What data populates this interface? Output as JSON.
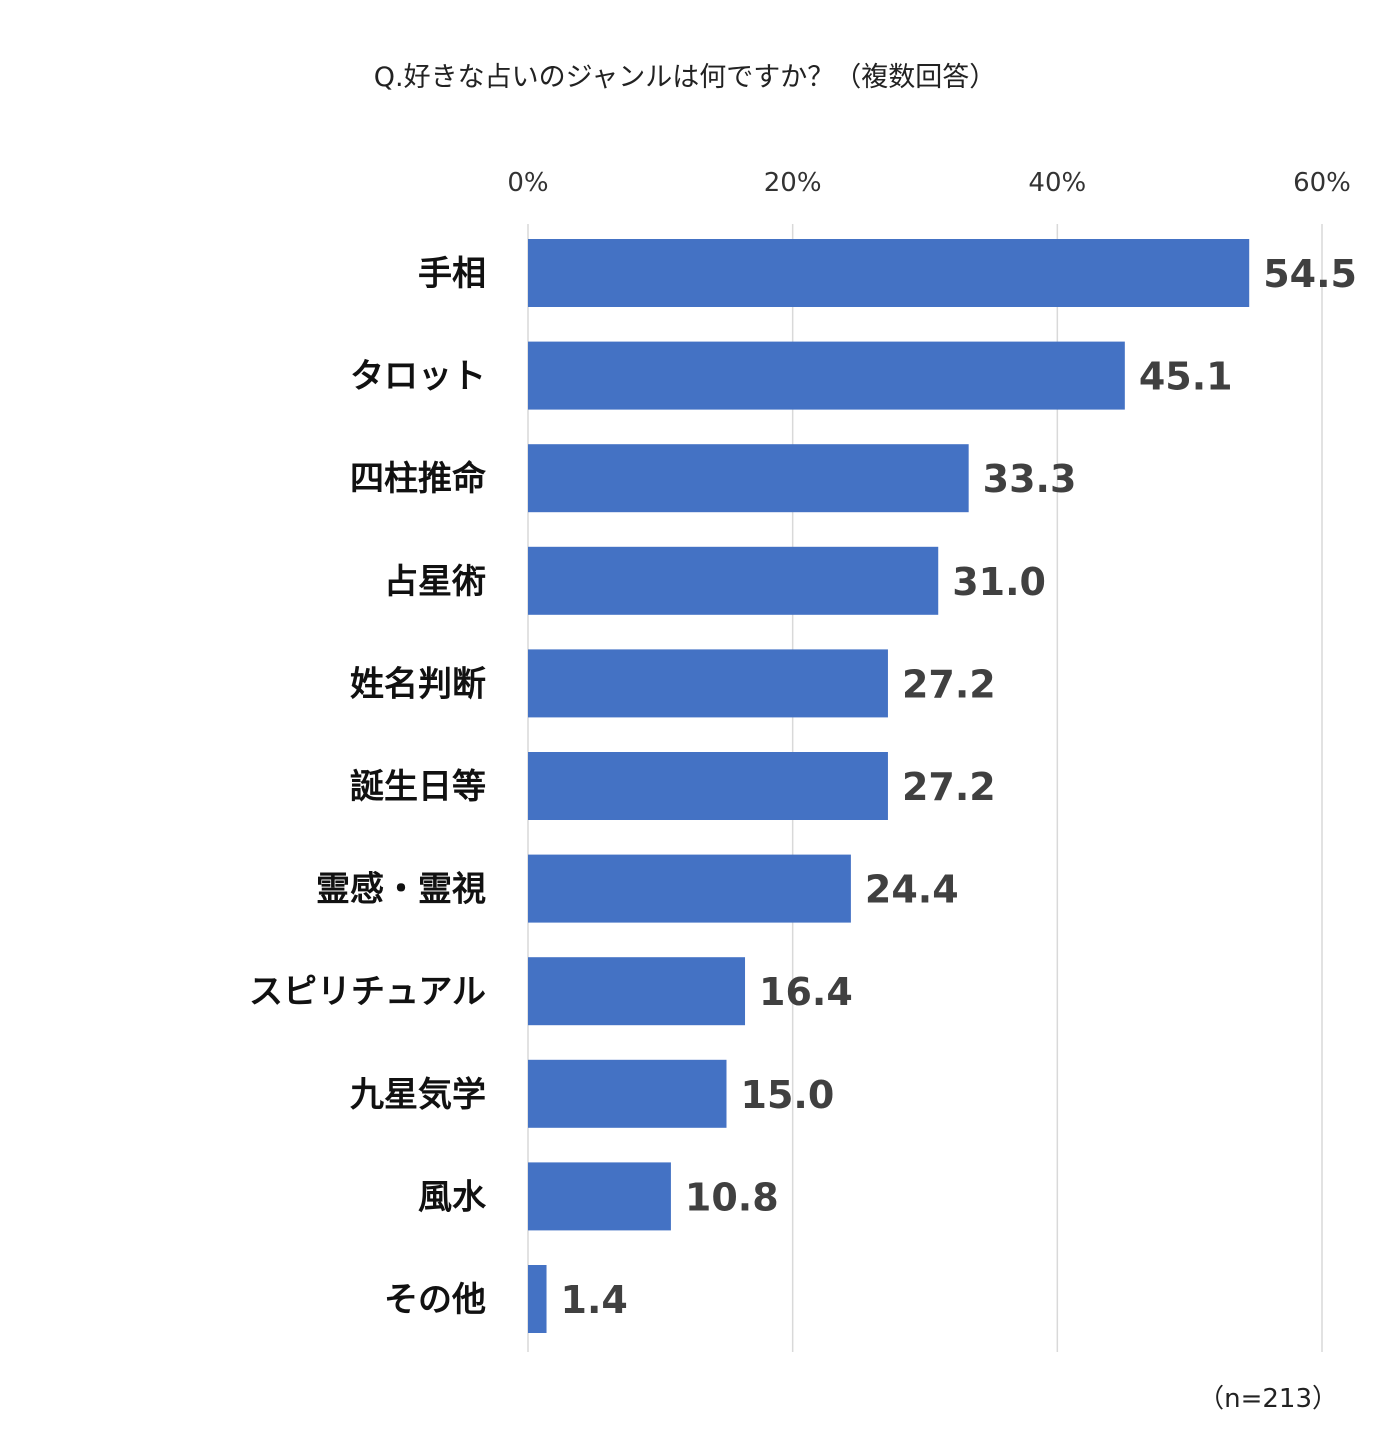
{
  "chart_data": {
    "type": "bar",
    "orientation": "horizontal",
    "title": "Q.好きな占いのジャンルは何ですか？（複数回答）",
    "categories": [
      "手相",
      "タロット",
      "四柱推命",
      "占星術",
      "姓名判断",
      "誕生日等",
      "霊感・霊視",
      "スピリチュアル",
      "九星気学",
      "風水",
      "その他"
    ],
    "values": [
      54.5,
      45.1,
      33.3,
      31.0,
      27.2,
      27.2,
      24.4,
      16.4,
      15.0,
      10.8,
      1.4
    ],
    "value_labels": [
      "54.5",
      "45.1",
      "33.3",
      "31.0",
      "27.2",
      "27.2",
      "24.4",
      "16.4",
      "15.0",
      "10.8",
      "1.4"
    ],
    "xlim": [
      0,
      60
    ],
    "x_ticks": [
      0,
      20,
      40,
      60
    ],
    "x_tick_labels": [
      "0%",
      "20%",
      "40%",
      "60%"
    ],
    "x_axis_position": "top",
    "grid": true,
    "legend": "none",
    "bar_color": "#4472C4",
    "grid_color": "#D9D9D9",
    "note": "（n=213）"
  }
}
